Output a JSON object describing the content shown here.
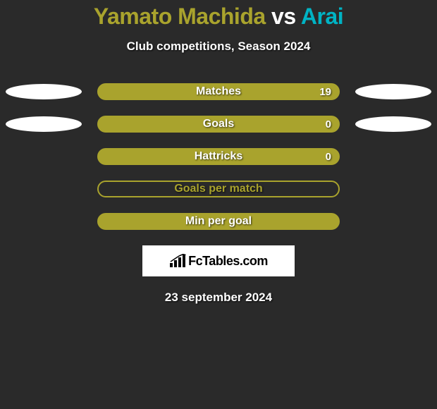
{
  "title": {
    "player1": "Yamato Machida",
    "vs": "vs",
    "player2": "Arai",
    "player1_color": "#a9a32d",
    "vs_color": "#ffffff",
    "player2_color": "#00b3c4"
  },
  "subtitle": "Club competitions, Season 2024",
  "rows": [
    {
      "label": "Matches",
      "right_value": "19",
      "bar_fill": "#a9a32d",
      "bar_border": "#a9a32d",
      "left_ellipse": true,
      "right_ellipse": true
    },
    {
      "label": "Goals",
      "right_value": "0",
      "bar_fill": "#a9a32d",
      "bar_border": "#a9a32d",
      "left_ellipse": true,
      "right_ellipse": true
    },
    {
      "label": "Hattricks",
      "right_value": "0",
      "bar_fill": "#a9a32d",
      "bar_border": "#a9a32d",
      "left_ellipse": false,
      "right_ellipse": false
    },
    {
      "label": "Goals per match",
      "right_value": "",
      "bar_fill": "transparent",
      "bar_border": "#a9a32d",
      "left_ellipse": false,
      "right_ellipse": false
    },
    {
      "label": "Min per goal",
      "right_value": "",
      "bar_fill": "#a9a32d",
      "bar_border": "#a9a32d",
      "left_ellipse": false,
      "right_ellipse": false
    }
  ],
  "brand": "FcTables.com",
  "date": "23 september 2024",
  "background_color": "#2a2a2a",
  "ellipse_color": "#ffffff",
  "bar_label_color": "#a9a32d"
}
